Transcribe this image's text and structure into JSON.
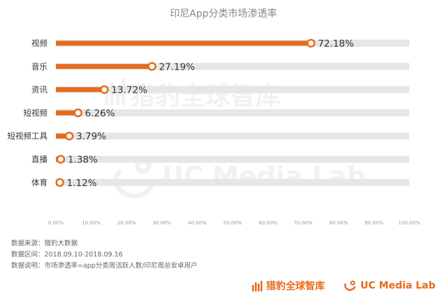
{
  "chart_data": {
    "type": "bar",
    "orientation": "horizontal",
    "title": "印尼App分类市场渗透率",
    "categories": [
      "视频",
      "音乐",
      "资讯",
      "短视频",
      "短视频工具",
      "直播",
      "体育"
    ],
    "values": [
      72.18,
      27.19,
      13.72,
      6.26,
      3.79,
      1.38,
      1.12
    ],
    "value_labels": [
      "72.18%",
      "27.19%",
      "13.72%",
      "6.26%",
      "3.79%",
      "1.38%",
      "1.12%"
    ],
    "xlim": [
      0,
      100
    ],
    "x_ticks": [
      "0.00%",
      "10.00%",
      "20.00%",
      "30.00%",
      "40.00%",
      "50.00%",
      "60.00%",
      "70.00%",
      "80.00%",
      "90.00%",
      "100.00%"
    ],
    "grid": false,
    "colors": {
      "bar": "#e86a1c",
      "track": "#e6e6e6",
      "marker_fill": "#ffffff"
    }
  },
  "watermarks": {
    "cheetah": "猎豹全球智库",
    "uc": "UC Media Lab"
  },
  "footnotes": [
    "数据来源：猎豹大数据",
    "数据区间：2018.09.10-2018.09.16",
    "数据说明：市场渗透率=app分类周活跃人数/印尼周总安卓用户"
  ],
  "footer_brands": {
    "cheetah": "猎豹全球智库",
    "uc": "UC Media Lab"
  }
}
